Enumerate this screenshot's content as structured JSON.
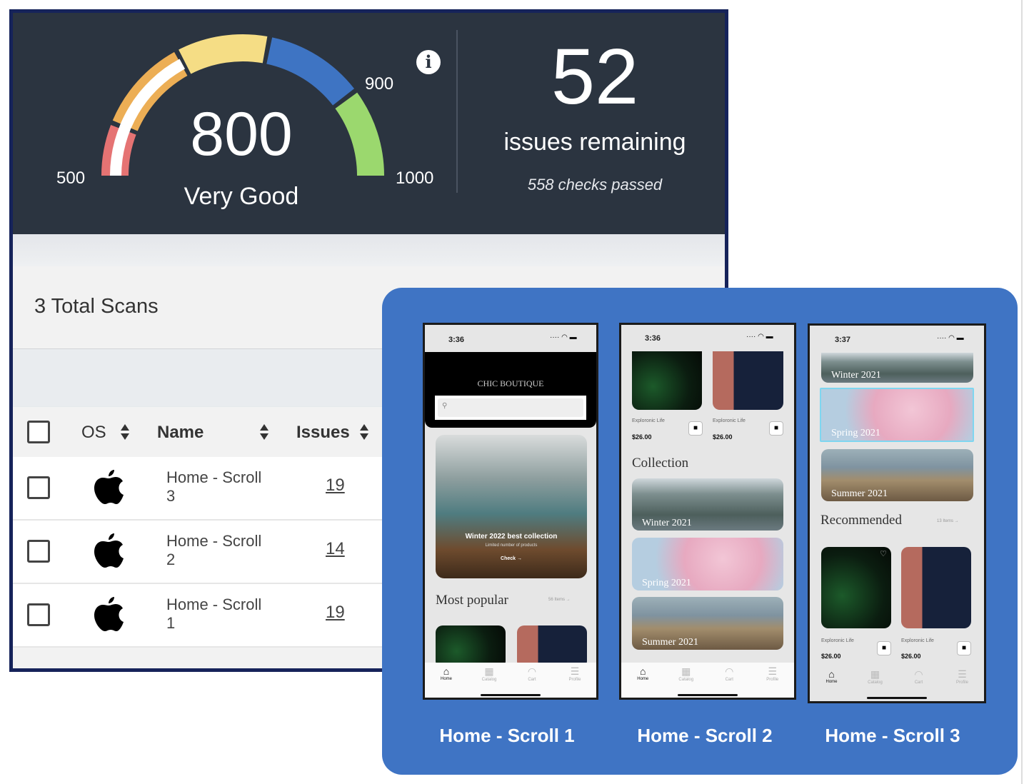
{
  "gauge": {
    "score": "800",
    "rating": "Very Good",
    "min_label": "500",
    "mid_label": "900",
    "max_label": "1000",
    "min": 500,
    "max": 1000,
    "value": 800,
    "colors": {
      "red": "#e57373",
      "orange": "#ecae55",
      "yellow": "#f5dd85",
      "blue": "#3e74c3",
      "green": "#9bd86e",
      "progress": "#ffffff"
    }
  },
  "summary": {
    "issues_count": "52",
    "issues_label": "issues remaining",
    "checks_passed": "558 checks passed"
  },
  "scans": {
    "title": "3 Total Scans",
    "columns": {
      "os": "OS",
      "name": "Name",
      "issues": "Issues"
    },
    "rows": [
      {
        "os": "apple",
        "name": "Home - Scroll 3",
        "issues": "19"
      },
      {
        "os": "apple",
        "name": "Home - Scroll 2",
        "issues": "14"
      },
      {
        "os": "apple",
        "name": "Home - Scroll 1",
        "issues": "19"
      }
    ]
  },
  "screens": [
    {
      "label": "Home - Scroll 1",
      "time": "3:36",
      "brand": "CHIC BOUTIQUE",
      "hero_title": "Winter 2022 best collection",
      "hero_sub": "Limited number of products",
      "hero_cta": "Check →",
      "section": "Most popular",
      "section_more": "56 Items →"
    },
    {
      "label": "Home - Scroll 2",
      "time": "3:36",
      "product_name": "Exploronic Life",
      "price": "$26.00",
      "section": "Collection",
      "banners": [
        "Winter 2021",
        "Spring 2021",
        "Summer 2021"
      ]
    },
    {
      "label": "Home - Scroll 3",
      "time": "3:37",
      "banners": [
        "Winter 2021",
        "Spring 2021",
        "Summer 2021"
      ],
      "section": "Recommended",
      "section_more": "13 Items →",
      "product_name": "Exploronic Life",
      "price": "$26.00"
    }
  ],
  "tabs": [
    "Home",
    "Catalog",
    "Cart",
    "Profile"
  ],
  "accent": "#3f74c4"
}
